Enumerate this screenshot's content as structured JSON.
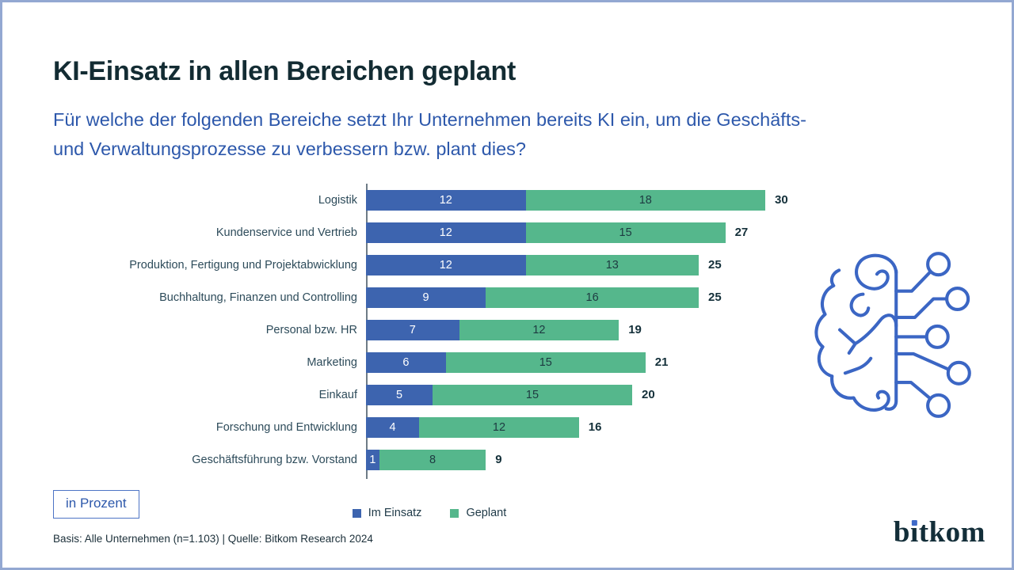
{
  "header": {
    "title": "KI-Einsatz in allen Bereichen geplant",
    "subtitle": "Für welche der folgenden Bereiche setzt Ihr Unternehmen bereits KI ein, um die Geschäfts- und Verwaltungsprozesse zu verbessern bzw. plant dies?"
  },
  "chart_data": {
    "type": "bar",
    "orientation": "horizontal",
    "stacked": true,
    "title": "KI-Einsatz in allen Bereichen geplant",
    "unit": "Prozent",
    "categories": [
      "Logistik",
      "Kundenservice und Vertrieb",
      "Produktion, Fertigung und Projektabwicklung",
      "Buchhaltung, Finanzen und Controlling",
      "Personal bzw. HR",
      "Marketing",
      "Einkauf",
      "Forschung und Entwicklung",
      "Geschäftsführung bzw. Vorstand"
    ],
    "series": [
      {
        "name": "Im Einsatz",
        "color": "#3d64af",
        "text_color": "#ffffff",
        "values": [
          12,
          12,
          12,
          9,
          7,
          6,
          5,
          4,
          1
        ]
      },
      {
        "name": "Geplant",
        "color": "#55b78c",
        "text_color": "#1d3a41",
        "values": [
          18,
          15,
          13,
          16,
          12,
          15,
          15,
          12,
          8
        ]
      }
    ],
    "totals": [
      30,
      27,
      25,
      25,
      19,
      21,
      20,
      16,
      9
    ],
    "xlim": [
      0,
      30
    ],
    "grid": false,
    "legend_position": "bottom"
  },
  "annotations": {
    "unit_box_label": "in Prozent"
  },
  "footer": {
    "source": "Basis: Alle Unternehmen (n=1.103) | Quelle: Bitkom Research 2024",
    "logo_text": "bitkom",
    "logo_prefix": "b",
    "logo_dotless_i": "ı",
    "logo_suffix": "tkom"
  },
  "colors": {
    "title_dark": "#132c33",
    "subtitle_blue": "#2d58ab",
    "bar_blue": "#3d64af",
    "bar_green": "#55b78c",
    "axis_gray": "#6e7c86",
    "page_border": "#93a8d2",
    "brain_blue": "#3b66c4"
  }
}
